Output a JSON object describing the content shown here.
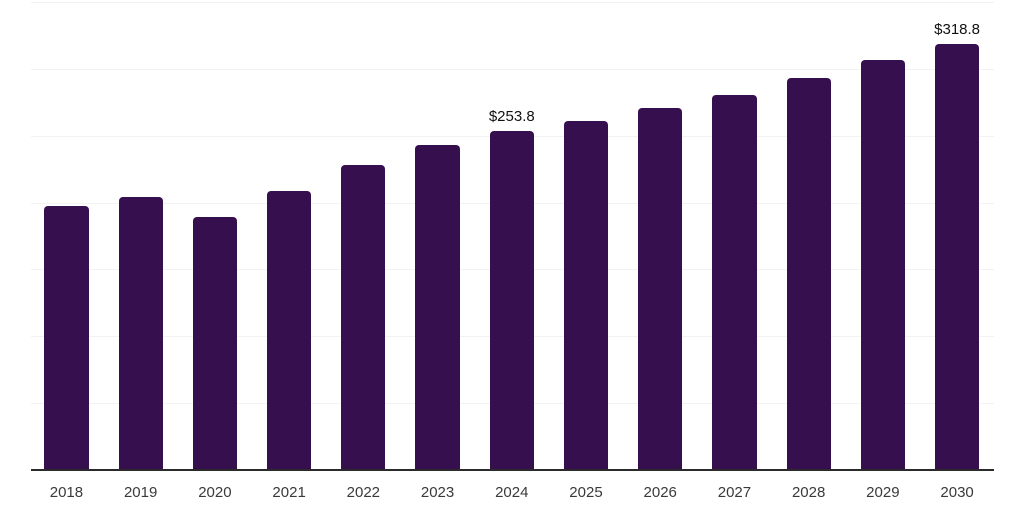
{
  "chart_data": {
    "type": "bar",
    "categories": [
      "2018",
      "2019",
      "2020",
      "2021",
      "2022",
      "2023",
      "2024",
      "2025",
      "2026",
      "2027",
      "2028",
      "2029",
      "2030"
    ],
    "values": [
      197.5,
      204.3,
      189.3,
      208.7,
      228.1,
      242.7,
      253.8,
      261.2,
      270.5,
      280.6,
      292.9,
      306.4,
      318.8
    ],
    "bar_labels": [
      "",
      "",
      "",
      "",
      "",
      "",
      "$253.8",
      "",
      "",
      "",
      "",
      "",
      "$318.8"
    ],
    "title": "",
    "xlabel": "",
    "ylabel": "",
    "ylim": [
      0,
      350
    ],
    "grid": true,
    "gridline_interval": 50,
    "legend": "none",
    "colors": {
      "bar": "#36104E",
      "gridline": "#F2F2F2",
      "axis_line": "#2B2B2B",
      "tick_label": "#3A3A3A",
      "value_label": "#111111",
      "background": "#FFFFFF"
    }
  }
}
